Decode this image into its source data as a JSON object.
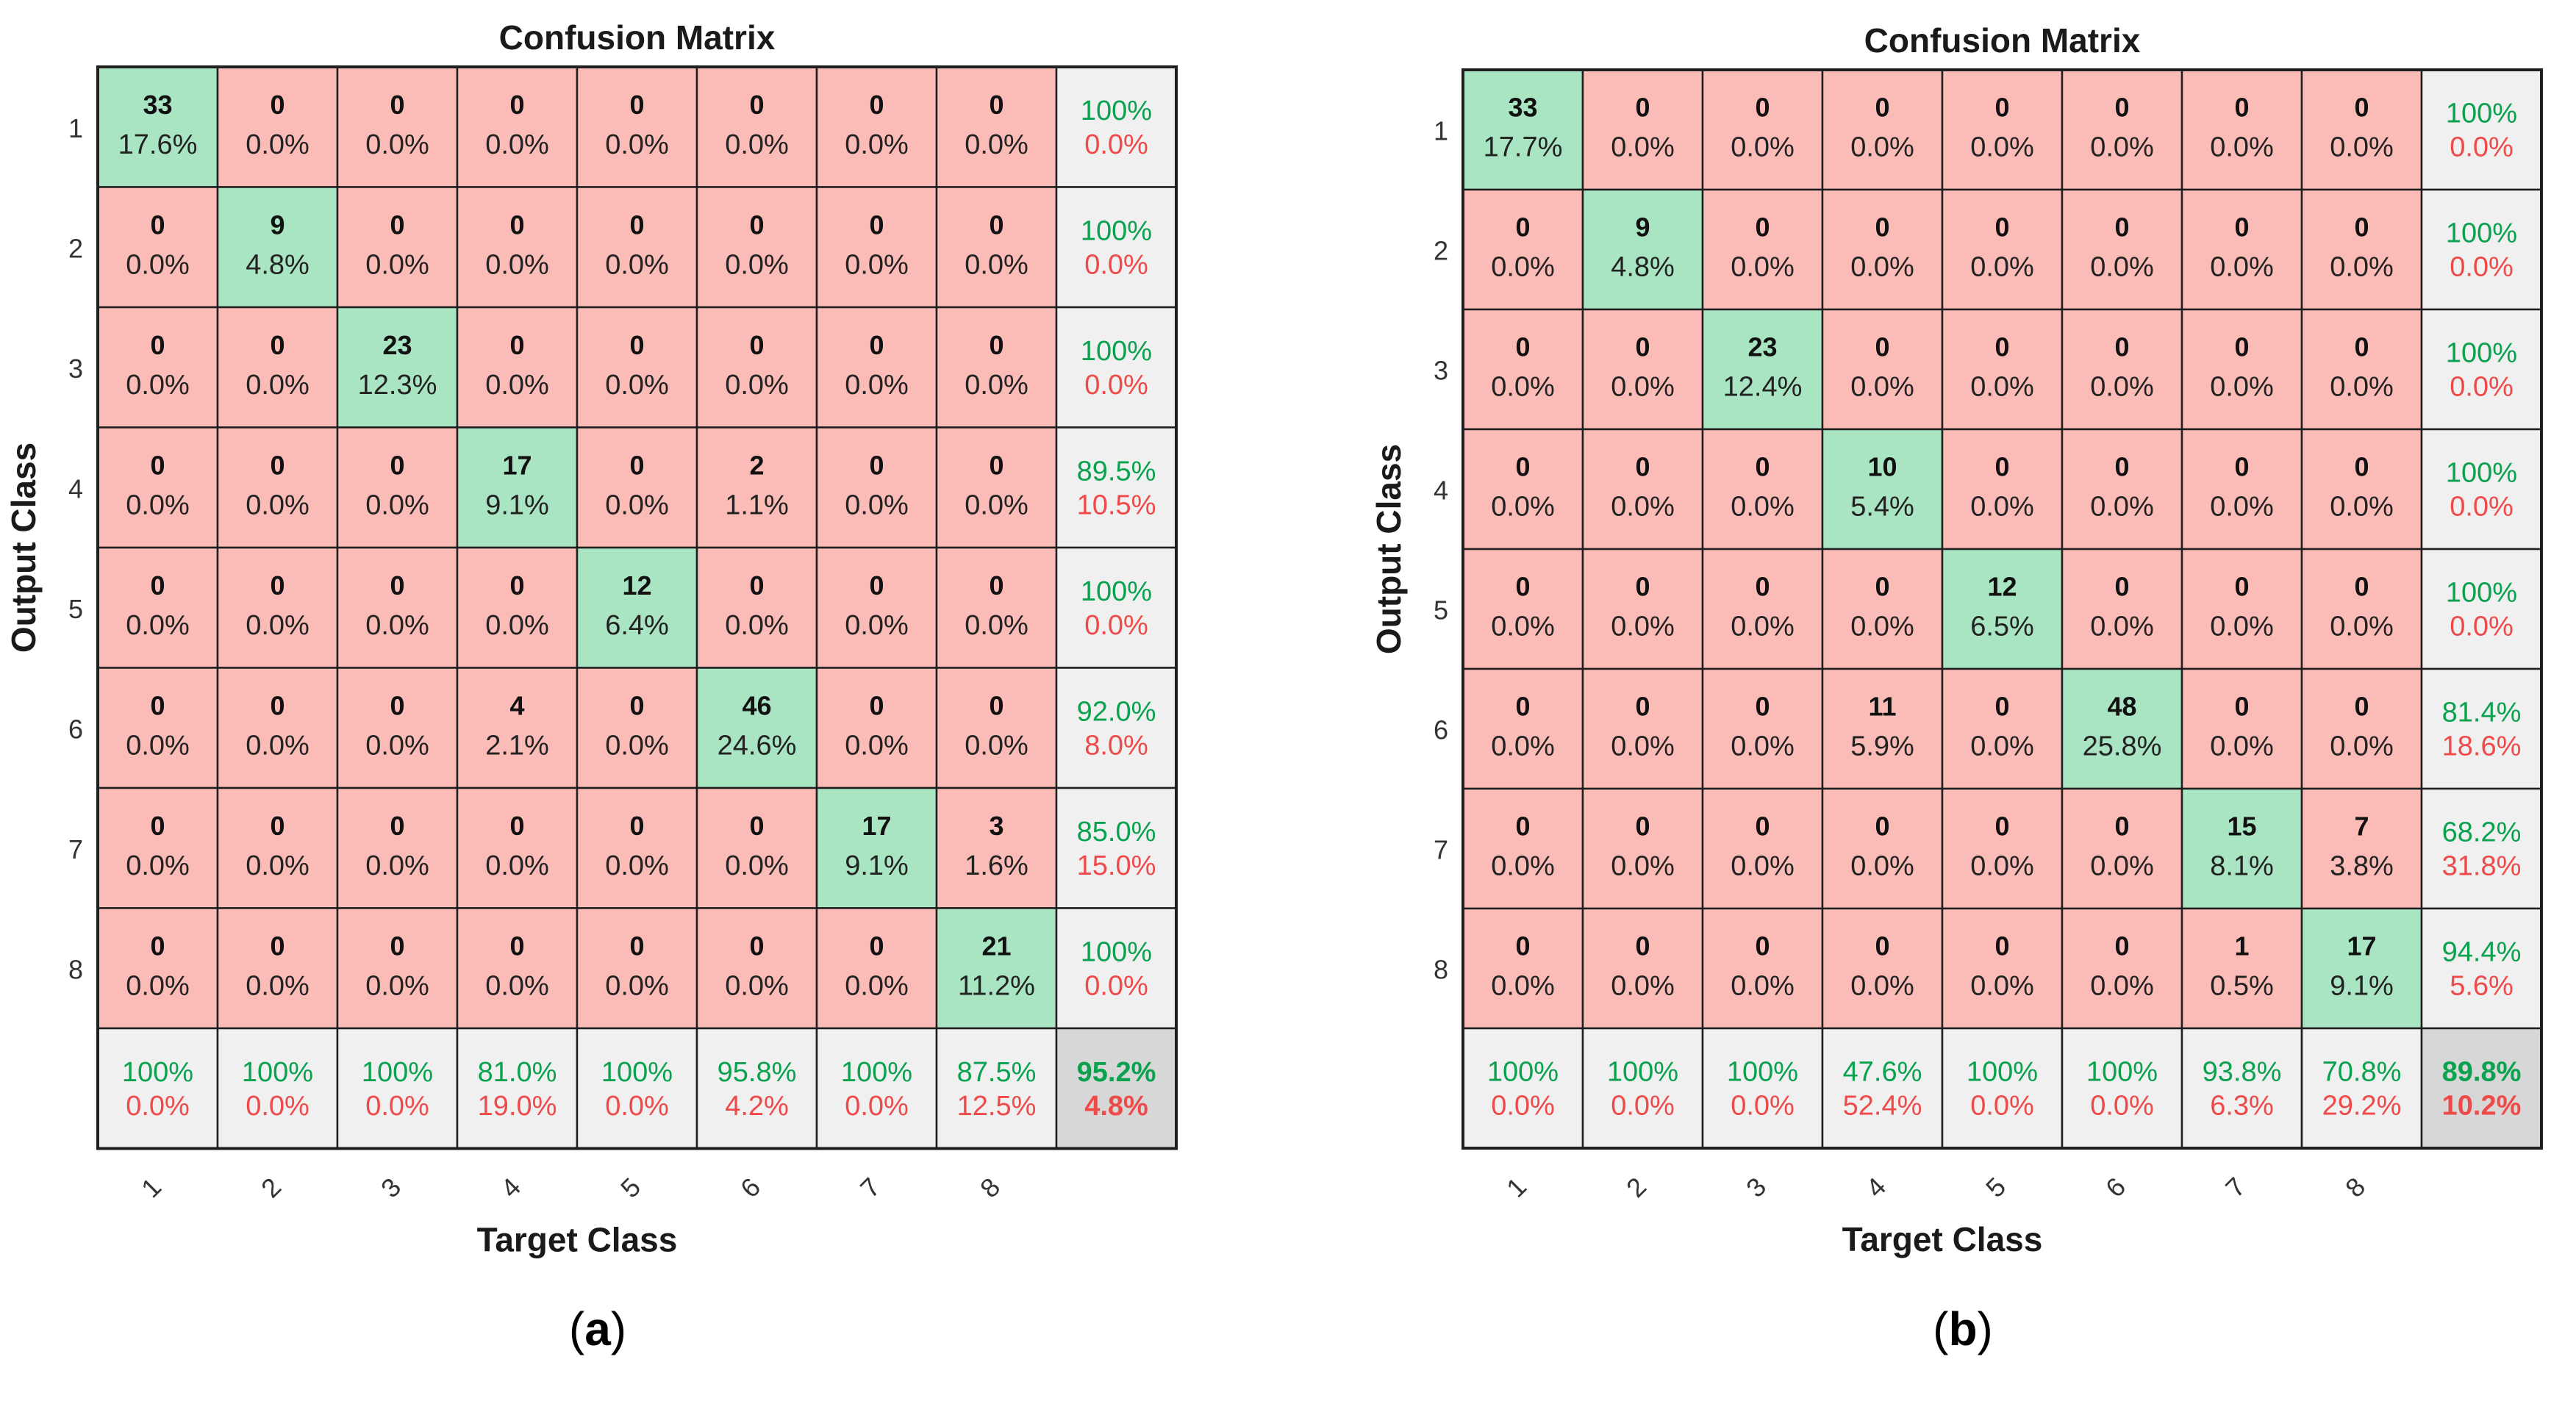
{
  "chart_data": [
    {
      "type": "heatmap",
      "panel": "(a)",
      "panel_letter": "a",
      "title": "Confusion Matrix",
      "xlabel": "Target Class",
      "ylabel": "Output Class",
      "classes": [
        "1",
        "2",
        "3",
        "4",
        "5",
        "6",
        "7",
        "8"
      ],
      "counts": [
        [
          33,
          0,
          0,
          0,
          0,
          0,
          0,
          0
        ],
        [
          0,
          9,
          0,
          0,
          0,
          0,
          0,
          0
        ],
        [
          0,
          0,
          23,
          0,
          0,
          0,
          0,
          0
        ],
        [
          0,
          0,
          0,
          17,
          0,
          2,
          0,
          0
        ],
        [
          0,
          0,
          0,
          0,
          12,
          0,
          0,
          0
        ],
        [
          0,
          0,
          0,
          4,
          0,
          46,
          0,
          0
        ],
        [
          0,
          0,
          0,
          0,
          0,
          0,
          17,
          3
        ],
        [
          0,
          0,
          0,
          0,
          0,
          0,
          0,
          21
        ]
      ],
      "percents": [
        [
          "17.6%",
          "0.0%",
          "0.0%",
          "0.0%",
          "0.0%",
          "0.0%",
          "0.0%",
          "0.0%"
        ],
        [
          "0.0%",
          "4.8%",
          "0.0%",
          "0.0%",
          "0.0%",
          "0.0%",
          "0.0%",
          "0.0%"
        ],
        [
          "0.0%",
          "0.0%",
          "12.3%",
          "0.0%",
          "0.0%",
          "0.0%",
          "0.0%",
          "0.0%"
        ],
        [
          "0.0%",
          "0.0%",
          "0.0%",
          "9.1%",
          "0.0%",
          "1.1%",
          "0.0%",
          "0.0%"
        ],
        [
          "0.0%",
          "0.0%",
          "0.0%",
          "0.0%",
          "6.4%",
          "0.0%",
          "0.0%",
          "0.0%"
        ],
        [
          "0.0%",
          "0.0%",
          "0.0%",
          "2.1%",
          "0.0%",
          "24.6%",
          "0.0%",
          "0.0%"
        ],
        [
          "0.0%",
          "0.0%",
          "0.0%",
          "0.0%",
          "0.0%",
          "0.0%",
          "9.1%",
          "1.6%"
        ],
        [
          "0.0%",
          "0.0%",
          "0.0%",
          "0.0%",
          "0.0%",
          "0.0%",
          "0.0%",
          "11.2%"
        ]
      ],
      "row_summary": [
        [
          "100%",
          "0.0%"
        ],
        [
          "100%",
          "0.0%"
        ],
        [
          "100%",
          "0.0%"
        ],
        [
          "89.5%",
          "10.5%"
        ],
        [
          "100%",
          "0.0%"
        ],
        [
          "92.0%",
          "8.0%"
        ],
        [
          "85.0%",
          "15.0%"
        ],
        [
          "100%",
          "0.0%"
        ]
      ],
      "col_summary": [
        [
          "100%",
          "0.0%"
        ],
        [
          "100%",
          "0.0%"
        ],
        [
          "100%",
          "0.0%"
        ],
        [
          "81.0%",
          "19.0%"
        ],
        [
          "100%",
          "0.0%"
        ],
        [
          "95.8%",
          "4.2%"
        ],
        [
          "100%",
          "0.0%"
        ],
        [
          "87.5%",
          "12.5%"
        ]
      ],
      "overall": [
        "95.2%",
        "4.8%"
      ]
    },
    {
      "type": "heatmap",
      "panel": "(b)",
      "panel_letter": "b",
      "title": "Confusion Matrix",
      "xlabel": "Target Class",
      "ylabel": "Output Class",
      "classes": [
        "1",
        "2",
        "3",
        "4",
        "5",
        "6",
        "7",
        "8"
      ],
      "counts": [
        [
          33,
          0,
          0,
          0,
          0,
          0,
          0,
          0
        ],
        [
          0,
          9,
          0,
          0,
          0,
          0,
          0,
          0
        ],
        [
          0,
          0,
          23,
          0,
          0,
          0,
          0,
          0
        ],
        [
          0,
          0,
          0,
          10,
          0,
          0,
          0,
          0
        ],
        [
          0,
          0,
          0,
          0,
          12,
          0,
          0,
          0
        ],
        [
          0,
          0,
          0,
          11,
          0,
          48,
          0,
          0
        ],
        [
          0,
          0,
          0,
          0,
          0,
          0,
          15,
          7
        ],
        [
          0,
          0,
          0,
          0,
          0,
          0,
          1,
          17
        ]
      ],
      "percents": [
        [
          "17.7%",
          "0.0%",
          "0.0%",
          "0.0%",
          "0.0%",
          "0.0%",
          "0.0%",
          "0.0%"
        ],
        [
          "0.0%",
          "4.8%",
          "0.0%",
          "0.0%",
          "0.0%",
          "0.0%",
          "0.0%",
          "0.0%"
        ],
        [
          "0.0%",
          "0.0%",
          "12.4%",
          "0.0%",
          "0.0%",
          "0.0%",
          "0.0%",
          "0.0%"
        ],
        [
          "0.0%",
          "0.0%",
          "0.0%",
          "5.4%",
          "0.0%",
          "0.0%",
          "0.0%",
          "0.0%"
        ],
        [
          "0.0%",
          "0.0%",
          "0.0%",
          "0.0%",
          "6.5%",
          "0.0%",
          "0.0%",
          "0.0%"
        ],
        [
          "0.0%",
          "0.0%",
          "0.0%",
          "5.9%",
          "0.0%",
          "25.8%",
          "0.0%",
          "0.0%"
        ],
        [
          "0.0%",
          "0.0%",
          "0.0%",
          "0.0%",
          "0.0%",
          "0.0%",
          "8.1%",
          "3.8%"
        ],
        [
          "0.0%",
          "0.0%",
          "0.0%",
          "0.0%",
          "0.0%",
          "0.0%",
          "0.5%",
          "9.1%"
        ]
      ],
      "row_summary": [
        [
          "100%",
          "0.0%"
        ],
        [
          "100%",
          "0.0%"
        ],
        [
          "100%",
          "0.0%"
        ],
        [
          "100%",
          "0.0%"
        ],
        [
          "100%",
          "0.0%"
        ],
        [
          "81.4%",
          "18.6%"
        ],
        [
          "68.2%",
          "31.8%"
        ],
        [
          "94.4%",
          "5.6%"
        ]
      ],
      "col_summary": [
        [
          "100%",
          "0.0%"
        ],
        [
          "100%",
          "0.0%"
        ],
        [
          "100%",
          "0.0%"
        ],
        [
          "47.6%",
          "52.4%"
        ],
        [
          "100%",
          "0.0%"
        ],
        [
          "100%",
          "0.0%"
        ],
        [
          "93.8%",
          "6.3%"
        ],
        [
          "70.8%",
          "29.2%"
        ]
      ],
      "overall": [
        "89.8%",
        "10.2%"
      ]
    }
  ],
  "colors": {
    "diag_fill": "#a9e5c3",
    "offdiag_fill": "#fbbcb7",
    "summary_fill": "#f0f0f0",
    "overall_fill": "#d7d7d7",
    "good_text": "#0aa14f",
    "bad_text": "#ef4a4a",
    "grid_line": "#1f1f1f"
  }
}
